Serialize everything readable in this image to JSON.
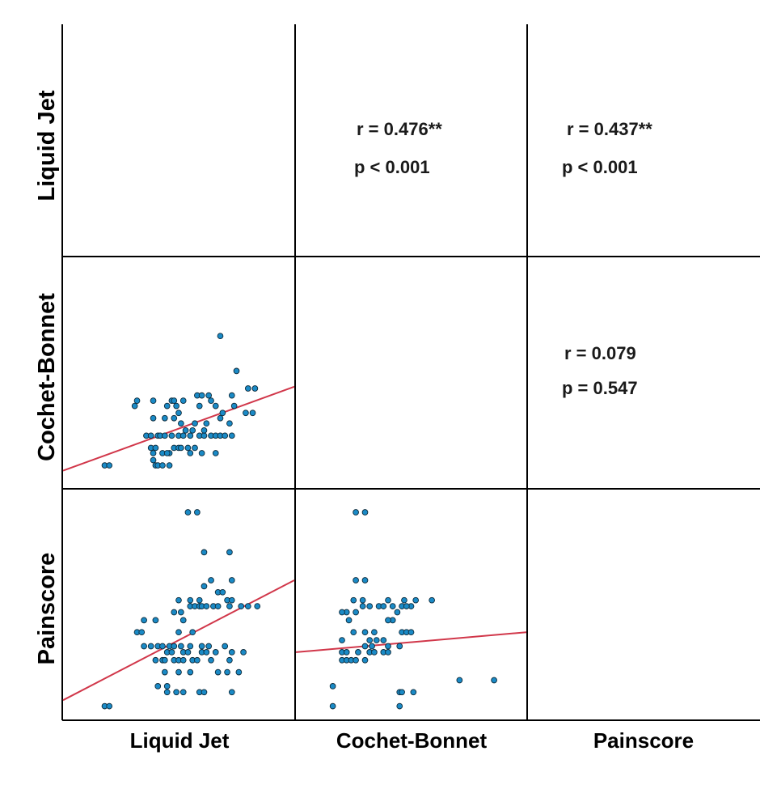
{
  "variables": [
    "Liquid Jet",
    "Cochet-Bonnet",
    "Painscore"
  ],
  "colors": {
    "point_fill": "#1a8ac6",
    "point_stroke": "#0d2a3a",
    "fit_line": "#d1374a",
    "grid": "#000000"
  },
  "chart_data": {
    "type": "scatter",
    "title": "",
    "axis_ranges": {
      "Liquid Jet": [
        0,
        100
      ],
      "Cochet-Bonnet": [
        0,
        100
      ],
      "Painscore": [
        0,
        100
      ]
    },
    "panels": {
      "Cochet-Bonnet_vs_Liquid Jet": {
        "x_var": "Liquid Jet",
        "y_var": "Cochet-Bonnet",
        "points": [
          [
            18,
            6
          ],
          [
            20,
            6
          ],
          [
            39,
            9
          ],
          [
            40,
            6
          ],
          [
            41,
            6
          ],
          [
            43,
            6
          ],
          [
            46,
            6
          ],
          [
            39,
            13
          ],
          [
            43,
            13
          ],
          [
            46,
            13
          ],
          [
            38,
            16
          ],
          [
            40,
            16
          ],
          [
            45,
            13
          ],
          [
            48,
            16
          ],
          [
            50,
            16
          ],
          [
            51,
            16
          ],
          [
            54,
            16
          ],
          [
            57,
            16
          ],
          [
            55,
            13
          ],
          [
            60,
            13
          ],
          [
            66,
            13
          ],
          [
            36,
            23
          ],
          [
            38,
            23
          ],
          [
            41,
            23
          ],
          [
            42,
            23
          ],
          [
            44,
            23
          ],
          [
            47,
            23
          ],
          [
            50,
            23
          ],
          [
            52,
            23
          ],
          [
            55,
            23
          ],
          [
            59,
            23
          ],
          [
            61,
            23
          ],
          [
            64,
            23
          ],
          [
            66,
            23
          ],
          [
            68,
            23
          ],
          [
            70,
            23
          ],
          [
            73,
            23
          ],
          [
            53,
            26
          ],
          [
            56,
            26
          ],
          [
            61,
            26
          ],
          [
            51,
            30
          ],
          [
            57,
            30
          ],
          [
            62,
            30
          ],
          [
            68,
            33
          ],
          [
            72,
            30
          ],
          [
            39,
            33
          ],
          [
            44,
            33
          ],
          [
            48,
            33
          ],
          [
            50,
            36
          ],
          [
            45,
            40
          ],
          [
            49,
            40
          ],
          [
            59,
            40
          ],
          [
            66,
            40
          ],
          [
            69,
            36
          ],
          [
            74,
            40
          ],
          [
            79,
            36
          ],
          [
            82,
            36
          ],
          [
            31,
            40
          ],
          [
            32,
            43
          ],
          [
            39,
            43
          ],
          [
            47,
            43
          ],
          [
            48,
            43
          ],
          [
            52,
            43
          ],
          [
            58,
            46
          ],
          [
            63,
            46
          ],
          [
            73,
            46
          ],
          [
            80,
            50
          ],
          [
            83,
            50
          ],
          [
            75,
            60
          ],
          [
            68,
            80
          ],
          [
            60,
            46
          ],
          [
            64,
            43
          ]
        ],
        "fit": [
          [
            0,
            3
          ],
          [
            100,
            51
          ]
        ]
      },
      "Painscore_vs_Liquid Jet": {
        "x_var": "Liquid Jet",
        "y_var": "Painscore",
        "points": [
          [
            18,
            3
          ],
          [
            20,
            3
          ],
          [
            45,
            10
          ],
          [
            49,
            10
          ],
          [
            52,
            10
          ],
          [
            59,
            10
          ],
          [
            61,
            10
          ],
          [
            73,
            10
          ],
          [
            41,
            13
          ],
          [
            45,
            13
          ],
          [
            44,
            20
          ],
          [
            50,
            20
          ],
          [
            55,
            20
          ],
          [
            67,
            20
          ],
          [
            71,
            20
          ],
          [
            76,
            20
          ],
          [
            40,
            26
          ],
          [
            43,
            26
          ],
          [
            44,
            26
          ],
          [
            48,
            26
          ],
          [
            50,
            26
          ],
          [
            52,
            26
          ],
          [
            56,
            26
          ],
          [
            58,
            26
          ],
          [
            64,
            26
          ],
          [
            72,
            26
          ],
          [
            45,
            30
          ],
          [
            47,
            30
          ],
          [
            52,
            30
          ],
          [
            54,
            30
          ],
          [
            60,
            30
          ],
          [
            62,
            30
          ],
          [
            66,
            30
          ],
          [
            70,
            33
          ],
          [
            73,
            30
          ],
          [
            78,
            30
          ],
          [
            35,
            33
          ],
          [
            38,
            33
          ],
          [
            41,
            33
          ],
          [
            43,
            33
          ],
          [
            46,
            33
          ],
          [
            48,
            33
          ],
          [
            51,
            33
          ],
          [
            55,
            33
          ],
          [
            60,
            33
          ],
          [
            63,
            33
          ],
          [
            32,
            40
          ],
          [
            34,
            40
          ],
          [
            50,
            40
          ],
          [
            56,
            40
          ],
          [
            35,
            46
          ],
          [
            40,
            46
          ],
          [
            52,
            46
          ],
          [
            48,
            50
          ],
          [
            51,
            50
          ],
          [
            55,
            53
          ],
          [
            57,
            53
          ],
          [
            59,
            53
          ],
          [
            60,
            53
          ],
          [
            62,
            53
          ],
          [
            65,
            53
          ],
          [
            67,
            53
          ],
          [
            50,
            56
          ],
          [
            55,
            56
          ],
          [
            59,
            56
          ],
          [
            72,
            53
          ],
          [
            71,
            56
          ],
          [
            73,
            56
          ],
          [
            77,
            53
          ],
          [
            80,
            53
          ],
          [
            84,
            53
          ],
          [
            61,
            63
          ],
          [
            67,
            60
          ],
          [
            69,
            60
          ],
          [
            73,
            66
          ],
          [
            64,
            66
          ],
          [
            72,
            80
          ],
          [
            61,
            80
          ],
          [
            54,
            100
          ],
          [
            58,
            100
          ]
        ],
        "fit": [
          [
            0,
            6
          ],
          [
            100,
            66
          ]
        ]
      },
      "Painscore_vs_Cochet-Bonnet": {
        "x_var": "Cochet-Bonnet",
        "y_var": "Painscore",
        "points": [
          [
            16,
            3
          ],
          [
            45,
            3
          ],
          [
            45,
            10
          ],
          [
            46,
            10
          ],
          [
            51,
            10
          ],
          [
            16,
            13
          ],
          [
            71,
            16
          ],
          [
            86,
            16
          ],
          [
            20,
            26
          ],
          [
            22,
            26
          ],
          [
            24,
            26
          ],
          [
            26,
            26
          ],
          [
            30,
            26
          ],
          [
            32,
            30
          ],
          [
            34,
            30
          ],
          [
            38,
            30
          ],
          [
            40,
            30
          ],
          [
            20,
            30
          ],
          [
            22,
            30
          ],
          [
            27,
            30
          ],
          [
            20,
            36
          ],
          [
            30,
            33
          ],
          [
            32,
            36
          ],
          [
            35,
            36
          ],
          [
            38,
            36
          ],
          [
            40,
            33
          ],
          [
            45,
            33
          ],
          [
            46,
            40
          ],
          [
            48,
            40
          ],
          [
            50,
            40
          ],
          [
            30,
            40
          ],
          [
            34,
            40
          ],
          [
            42,
            46
          ],
          [
            40,
            46
          ],
          [
            44,
            50
          ],
          [
            22,
            50
          ],
          [
            26,
            50
          ],
          [
            29,
            53
          ],
          [
            32,
            53
          ],
          [
            36,
            53
          ],
          [
            38,
            53
          ],
          [
            42,
            53
          ],
          [
            46,
            53
          ],
          [
            50,
            53
          ],
          [
            52,
            56
          ],
          [
            40,
            56
          ],
          [
            47,
            56
          ],
          [
            48,
            53
          ],
          [
            59,
            56
          ],
          [
            25,
            56
          ],
          [
            29,
            56
          ],
          [
            26,
            66
          ],
          [
            30,
            66
          ],
          [
            26,
            100
          ],
          [
            30,
            100
          ],
          [
            20,
            50
          ],
          [
            23,
            46
          ],
          [
            25,
            40
          ],
          [
            33,
            33
          ]
        ],
        "fit": [
          [
            0,
            30
          ],
          [
            100,
            40
          ]
        ]
      }
    },
    "stats": {
      "Liquid Jet_Cochet-Bonnet": {
        "r": "r = 0.476**",
        "p": "p < 0.001"
      },
      "Liquid Jet_Painscore": {
        "r": "r = 0.437**",
        "p": "p < 0.001"
      },
      "Cochet-Bonnet_Painscore": {
        "r": "r = 0.079",
        "p": "p = 0.547"
      }
    }
  }
}
